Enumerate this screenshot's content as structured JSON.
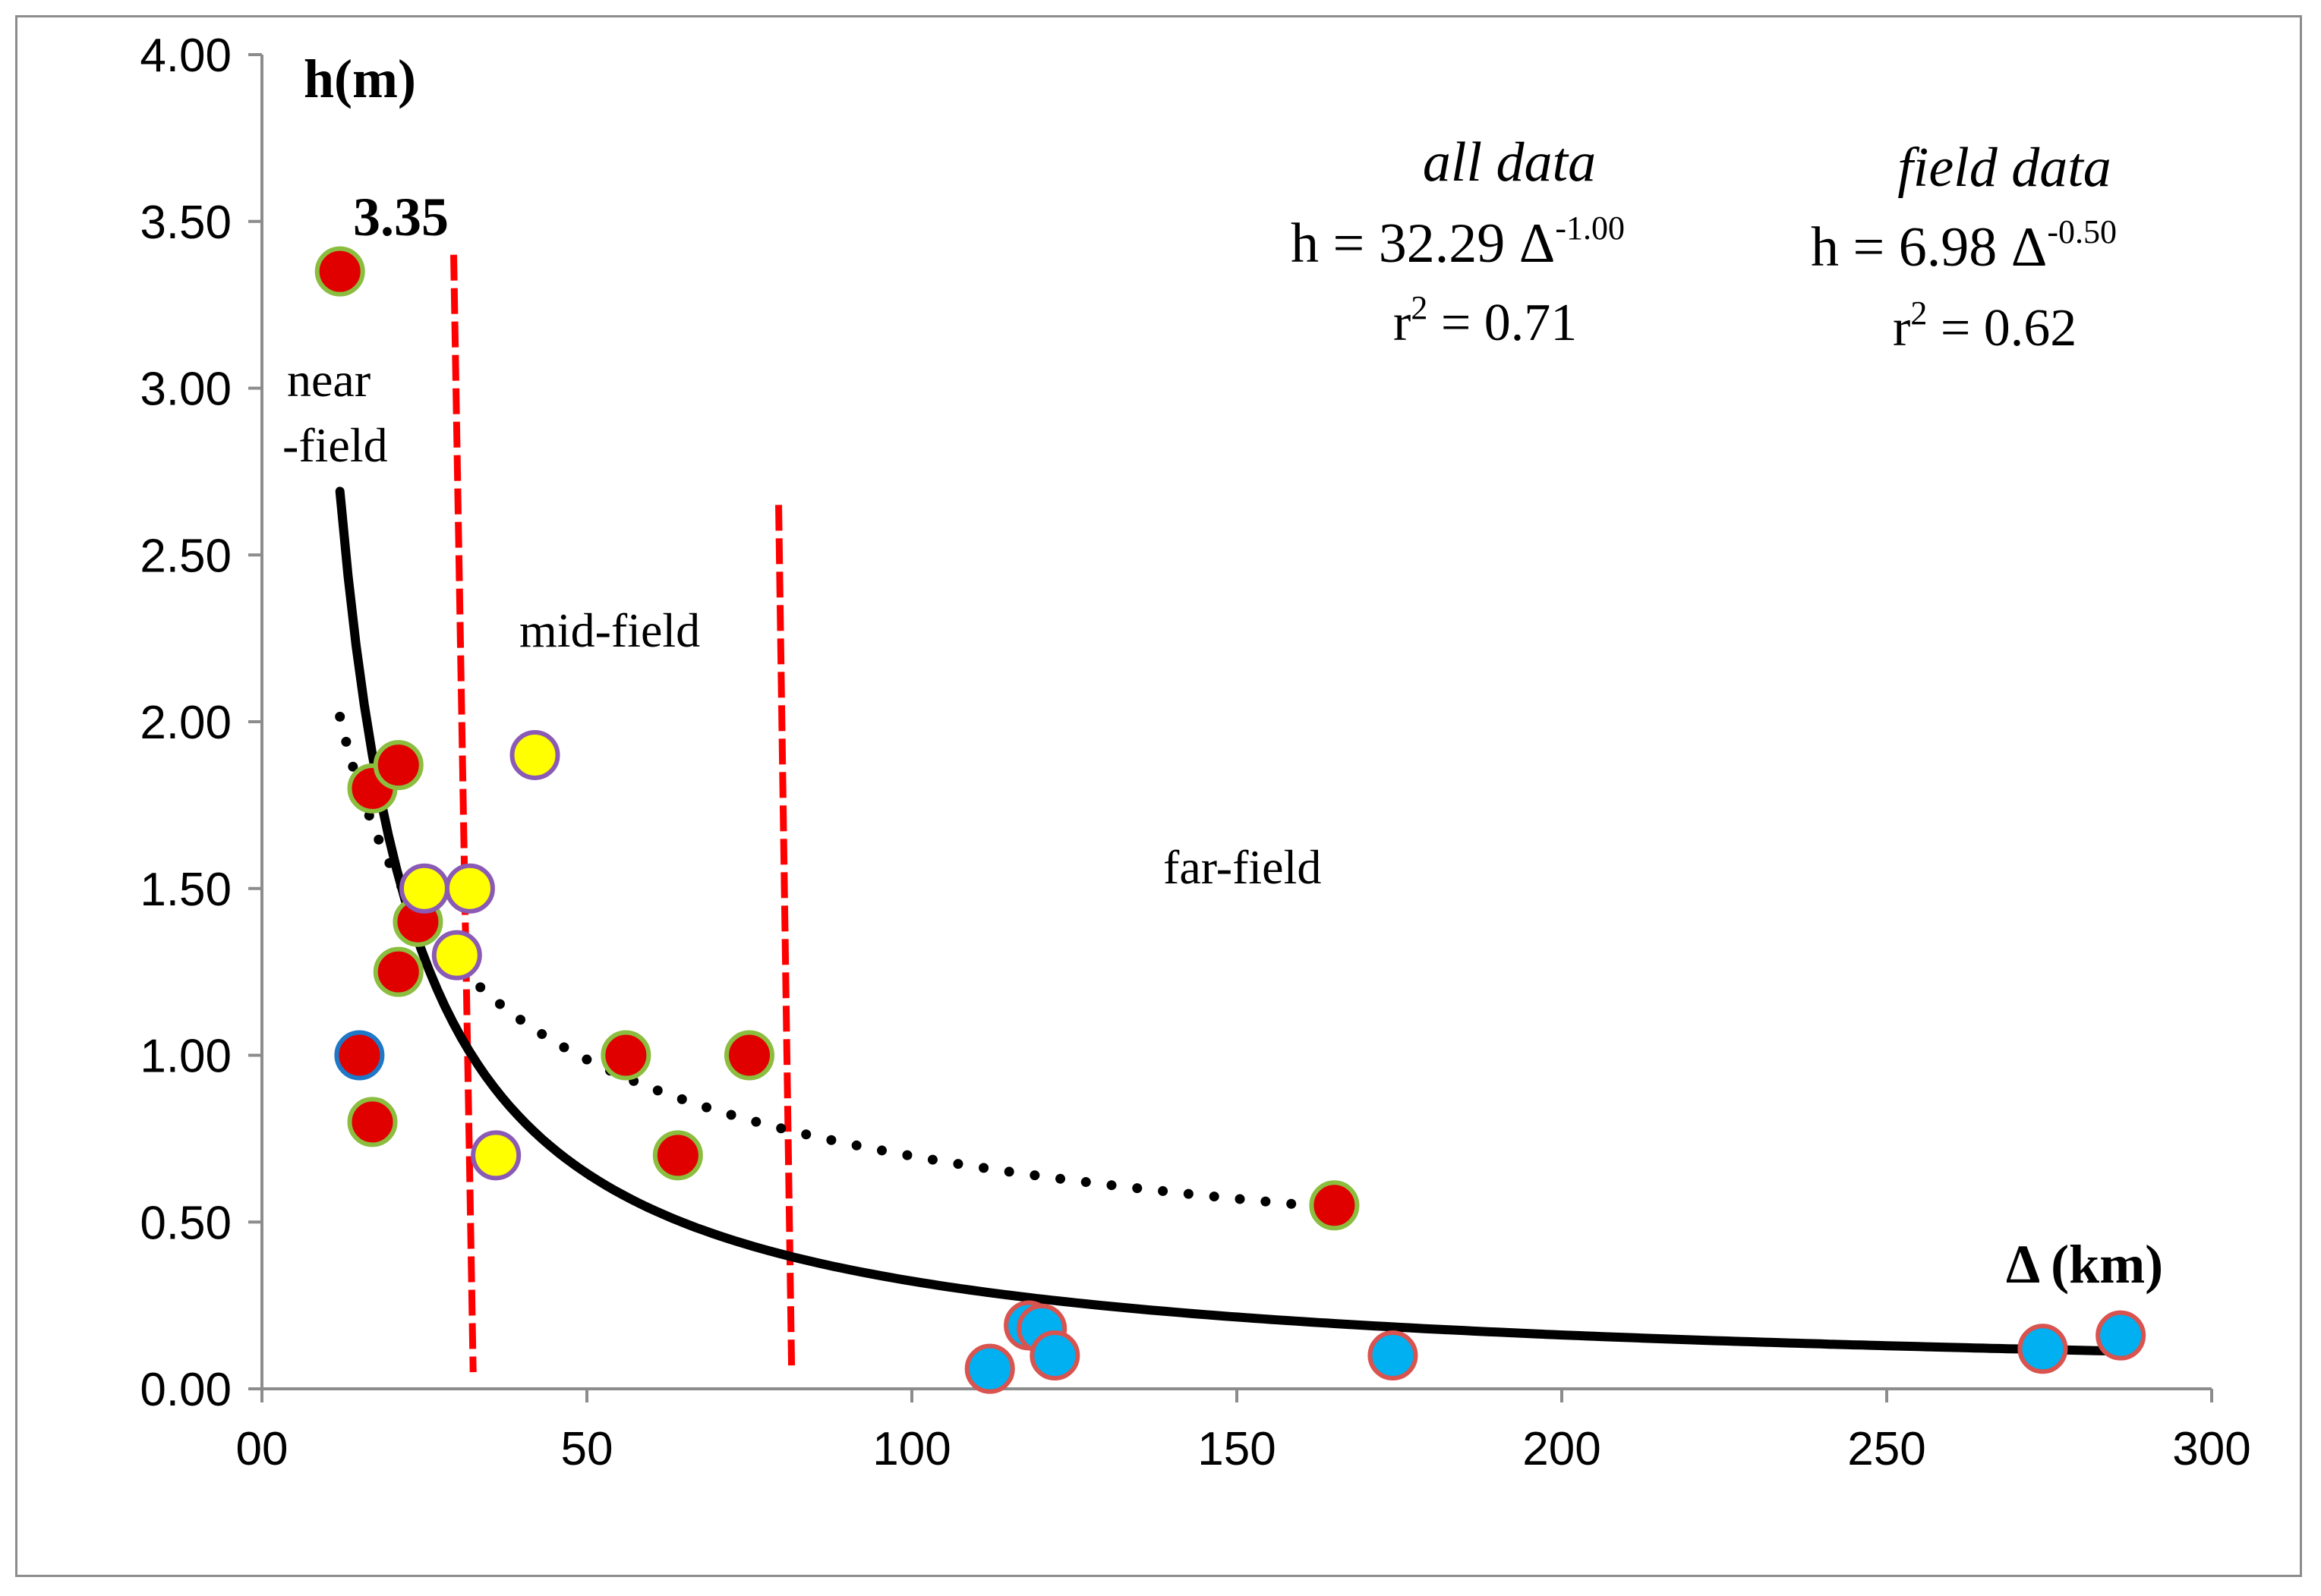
{
  "chart_data": {
    "type": "scatter",
    "title": "",
    "ylabel": "h(m)",
    "xlabel": "Δ (km)",
    "xlim": [
      0,
      300
    ],
    "ylim": [
      0,
      4
    ],
    "x_ticks": [
      0,
      50,
      100,
      150,
      200,
      250,
      300
    ],
    "x_tick_labels": [
      "00",
      "50",
      "100",
      "150",
      "200",
      "250",
      "300"
    ],
    "y_ticks": [
      0,
      0.5,
      1,
      1.5,
      2,
      2.5,
      3,
      3.5,
      4
    ],
    "y_tick_labels": [
      "0.00",
      "0.50",
      "1.00",
      "1.50",
      "2.00",
      "2.50",
      "3.00",
      "3.50",
      "4.00"
    ],
    "grid": false,
    "series": [
      {
        "fill": "#e00000",
        "stroke": "#8bbd3f",
        "points": [
          {
            "x": 12,
            "y": 3.35
          },
          {
            "x": 17,
            "y": 1.8
          },
          {
            "x": 21,
            "y": 1.87
          },
          {
            "x": 24,
            "y": 1.4
          },
          {
            "x": 21,
            "y": 1.25
          },
          {
            "x": 17,
            "y": 0.8
          },
          {
            "x": 56,
            "y": 1.0
          },
          {
            "x": 75,
            "y": 1.0
          },
          {
            "x": 64,
            "y": 0.7
          },
          {
            "x": 165,
            "y": 0.55
          }
        ]
      },
      {
        "fill": "#e00000",
        "stroke": "#1f77c8",
        "points": [
          {
            "x": 15,
            "y": 1.0
          }
        ]
      },
      {
        "fill": "#ffff00",
        "stroke": "#8a5ab5",
        "points": [
          {
            "x": 42,
            "y": 1.9
          },
          {
            "x": 25,
            "y": 1.5
          },
          {
            "x": 32,
            "y": 1.5
          },
          {
            "x": 30,
            "y": 1.3
          },
          {
            "x": 36,
            "y": 0.7
          }
        ]
      },
      {
        "fill": "#00b0f0",
        "stroke": "#d9534f",
        "points": [
          {
            "x": 118,
            "y": 0.19
          },
          {
            "x": 120,
            "y": 0.18
          },
          {
            "x": 112,
            "y": 0.06
          },
          {
            "x": 122,
            "y": 0.1
          },
          {
            "x": 174,
            "y": 0.1
          },
          {
            "x": 274,
            "y": 0.12
          },
          {
            "x": 286,
            "y": 0.16
          }
        ]
      }
    ],
    "fits": [
      {
        "label": "all data",
        "coef": 32.29,
        "exp": -1.0,
        "x_range": [
          12,
          286
        ],
        "style": "solid",
        "color": "#000000"
      },
      {
        "label": "field data",
        "coef": 6.98,
        "exp": -0.5,
        "x_range": [
          12,
          162
        ],
        "style": "dotted",
        "color": "#000000"
      }
    ],
    "boundaries": [
      {
        "x_top": 29.5,
        "y_top": 3.4,
        "x_bottom": 32.5,
        "y_bottom": 0.05,
        "color": "#ff0000"
      },
      {
        "x_top": 79.5,
        "y_top": 2.65,
        "x_bottom": 81.5,
        "y_bottom": 0.06,
        "color": "#ff0000"
      }
    ],
    "annotations": {
      "max_value_label": "3.35",
      "near_field_line1": "near",
      "near_field_line2": "-field",
      "mid_field": "mid-field",
      "far_field": "far-field",
      "all_data_title": "all data",
      "all_data_eq_base": "h = 32.29 Δ",
      "all_data_eq_exp": "-1.00",
      "all_data_r2_pre": "r",
      "all_data_r2_sup": "2",
      "all_data_r2_post": " = 0.71",
      "field_data_title": "field data",
      "field_data_eq_base": "h = 6.98 Δ",
      "field_data_eq_exp": "-0.50",
      "field_data_r2_pre": "r",
      "field_data_r2_sup": "2",
      "field_data_r2_post": " = 0.62"
    }
  }
}
